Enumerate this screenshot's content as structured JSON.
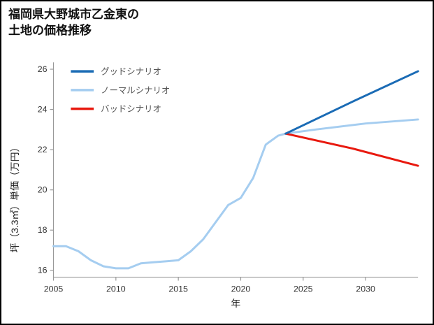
{
  "chart_data": {
    "type": "line",
    "title": "福岡県大野城市乙金東の\n土地の価格推移",
    "xlabel": "年",
    "ylabel": "坪（3.3㎡）単価（万円）",
    "xlim": [
      2005,
      2034.2
    ],
    "ylim": [
      15.66,
      26.34
    ],
    "xticks": [
      2005,
      2010,
      2015,
      2020,
      2025,
      2030
    ],
    "yticks": [
      16,
      18,
      20,
      22,
      24,
      26
    ],
    "grid": false,
    "legend_position": "upper-left",
    "axis_color": "#999999",
    "tick_text_color": "#333333",
    "legend_text_color": "#555555",
    "series": [
      {
        "name": "ノーマルシナリオ",
        "color": "#a5cdf0",
        "width": 3,
        "x": [
          2005,
          2006,
          2007,
          2008,
          2009,
          2010,
          2011,
          2012,
          2013,
          2014,
          2015,
          2016,
          2017,
          2018,
          2019,
          2020,
          2021,
          2022,
          2023,
          2023.6,
          2026,
          2030,
          2034.2
        ],
        "y": [
          17.2,
          17.2,
          16.95,
          16.5,
          16.2,
          16.1,
          16.1,
          16.35,
          16.4,
          16.45,
          16.5,
          16.95,
          17.55,
          18.4,
          19.25,
          19.6,
          20.6,
          22.25,
          22.7,
          22.8,
          23.0,
          23.3,
          23.5
        ]
      },
      {
        "name": "バッドシナリオ",
        "color": "#e8190f",
        "width": 3,
        "x": [
          2023.6,
          2029,
          2034.2
        ],
        "y": [
          22.8,
          22.05,
          21.2
        ]
      },
      {
        "name": "グッドシナリオ",
        "color": "#1a6bb5",
        "width": 3,
        "x": [
          2023.6,
          2029,
          2034.2
        ],
        "y": [
          22.8,
          24.4,
          25.9
        ]
      }
    ],
    "legend_order": [
      "グッドシナリオ",
      "ノーマルシナリオ",
      "バッドシナリオ"
    ]
  }
}
